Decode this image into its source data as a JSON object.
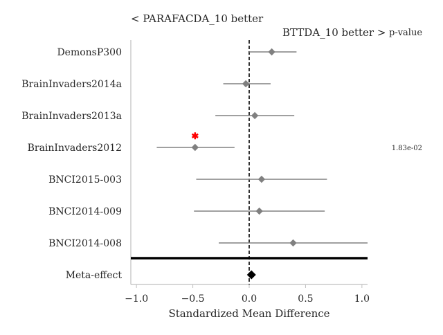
{
  "chart_data": {
    "type": "scatter",
    "subtype": "forest-plot",
    "xlabel": "Standardized Mean Difference",
    "xlim": [
      -1.05,
      1.05
    ],
    "xticks": [
      -1.0,
      -0.5,
      0.0,
      0.5,
      1.0
    ],
    "xtick_labels": [
      "−1.0",
      "−0.5",
      "0.0",
      "0.5",
      "1.0"
    ],
    "left_header": "< PARAFACDA_10 better",
    "right_header": "BTTDA_10 better >",
    "pvalue_header": "p-value",
    "reference_line_x": 0.0,
    "datasets": [
      {
        "name": "DemonsP300",
        "smd": 0.2,
        "ci_low": 0.0,
        "ci_high": 0.42,
        "significant": false,
        "p_value": ""
      },
      {
        "name": "BrainInvaders2014a",
        "smd": -0.03,
        "ci_low": -0.23,
        "ci_high": 0.19,
        "significant": false,
        "p_value": ""
      },
      {
        "name": "BrainInvaders2013a",
        "smd": 0.05,
        "ci_low": -0.3,
        "ci_high": 0.4,
        "significant": false,
        "p_value": ""
      },
      {
        "name": "BrainInvaders2012",
        "smd": -0.48,
        "ci_low": -0.82,
        "ci_high": -0.13,
        "significant": true,
        "p_value": "1.83e-02"
      },
      {
        "name": "BNCI2015-003",
        "smd": 0.11,
        "ci_low": -0.47,
        "ci_high": 0.69,
        "significant": false,
        "p_value": ""
      },
      {
        "name": "BNCI2014-009",
        "smd": 0.09,
        "ci_low": -0.49,
        "ci_high": 0.67,
        "significant": false,
        "p_value": ""
      },
      {
        "name": "BNCI2014-008",
        "smd": 0.39,
        "ci_low": -0.27,
        "ci_high": 1.05,
        "significant": false,
        "p_value": ""
      }
    ],
    "meta_effect": {
      "name": "Meta-effect",
      "smd": 0.02
    },
    "colors": {
      "points": "#808080",
      "meta": "#000000",
      "significance_marker": "#ff0000",
      "axis": "#bfbfbf",
      "text": "#262626"
    }
  }
}
